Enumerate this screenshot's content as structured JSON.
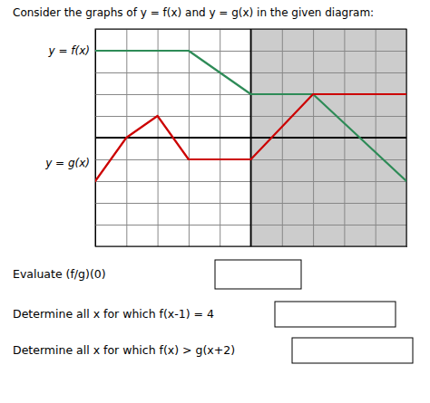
{
  "chart_data": {
    "type": "line",
    "title": "Consider the graphs of y = f(x) and y = g(x) in the given diagram:",
    "series": [
      {
        "name": "y = f(x)",
        "color": "#2e8b57",
        "x": [
          -5,
          -2,
          0,
          2,
          5
        ],
        "values": [
          4,
          4,
          2,
          2,
          -2
        ]
      },
      {
        "name": "y = g(x)",
        "color": "#cc0000",
        "x": [
          -5,
          -4,
          -3,
          -2,
          0,
          2,
          5
        ],
        "values": [
          -2,
          0,
          1,
          -1,
          -1,
          2,
          2
        ]
      }
    ],
    "xlim": [
      -5,
      5
    ],
    "ylim": [
      -5,
      5
    ],
    "xticks": [
      -5,
      -4,
      -3,
      -2,
      -1,
      0,
      1,
      2,
      3,
      4,
      5
    ],
    "yticks": [
      -5,
      -4,
      -3,
      -2,
      -1,
      0,
      1,
      2,
      3,
      4,
      5
    ],
    "grid": true,
    "tick_labels": false,
    "shaded_region": {
      "x": [
        0,
        5
      ],
      "color": "#cccccc"
    },
    "annotations": [
      "Evaluate (f/g)(0)",
      "Determine all x for which f(x-1) = 4",
      "Determine all x for which f(x) > g(x+2)"
    ]
  }
}
